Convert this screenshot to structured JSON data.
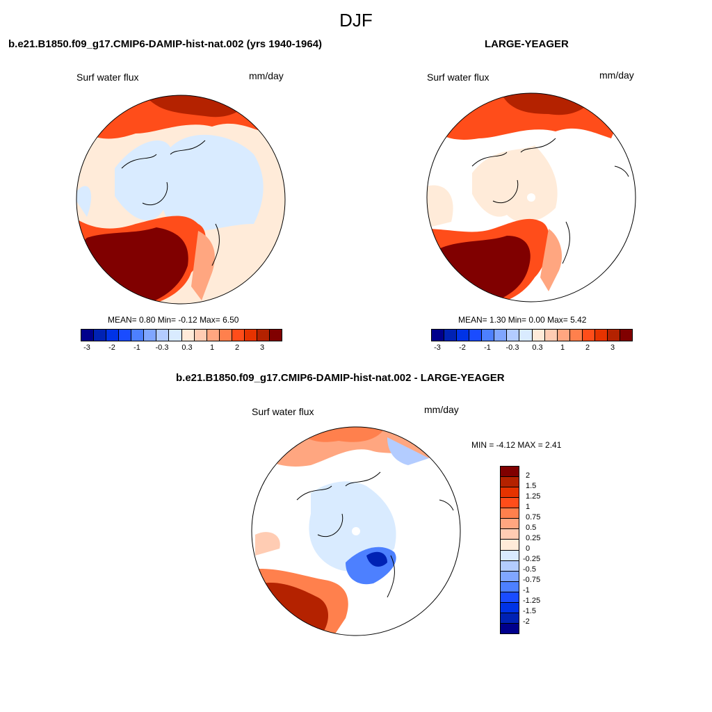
{
  "title": "DJF",
  "colors": [
    "#00008C",
    "#0022B4",
    "#0033E6",
    "#1A4CFF",
    "#4D80FF",
    "#80A6FF",
    "#B3CCFF",
    "#D9EBFF",
    "#FFEBD9",
    "#FFCCB3",
    "#FFA680",
    "#FF804D",
    "#FF4D1A",
    "#E63300",
    "#B42200",
    "#800000"
  ],
  "panels": [
    {
      "title": "b.e21.B1850.f09_g17.CMIP6-DAMIP-hist-nat.002 (yrs 1940-1964)",
      "variable": "Surf water flux",
      "units": "mm/day",
      "stats": "MEAN=   0.80  Min=  -0.12  Max=   6.50"
    },
    {
      "title": "LARGE-YEAGER",
      "variable": "Surf water flux",
      "units": "mm/day",
      "stats": "MEAN=   1.30  Min=   0.00  Max=   5.42"
    },
    {
      "title": "b.e21.B1850.f09_g17.CMIP6-DAMIP-hist-nat.002 - LARGE-YEAGER",
      "variable": "Surf water flux",
      "units": "mm/day",
      "stats": "MIN =  -4.12 MAX =   2.41"
    }
  ],
  "hbar_labels": [
    "-3",
    "-2",
    "-1",
    "-0.3",
    "0.3",
    "1",
    "2",
    "3"
  ],
  "vbar_labels": [
    "2",
    "1.5",
    "1.25",
    "1",
    "0.75",
    "0.5",
    "0.25",
    "0",
    "-0.25",
    "-0.5",
    "-0.75",
    "-1",
    "-1.25",
    "-1.5",
    "-2"
  ]
}
